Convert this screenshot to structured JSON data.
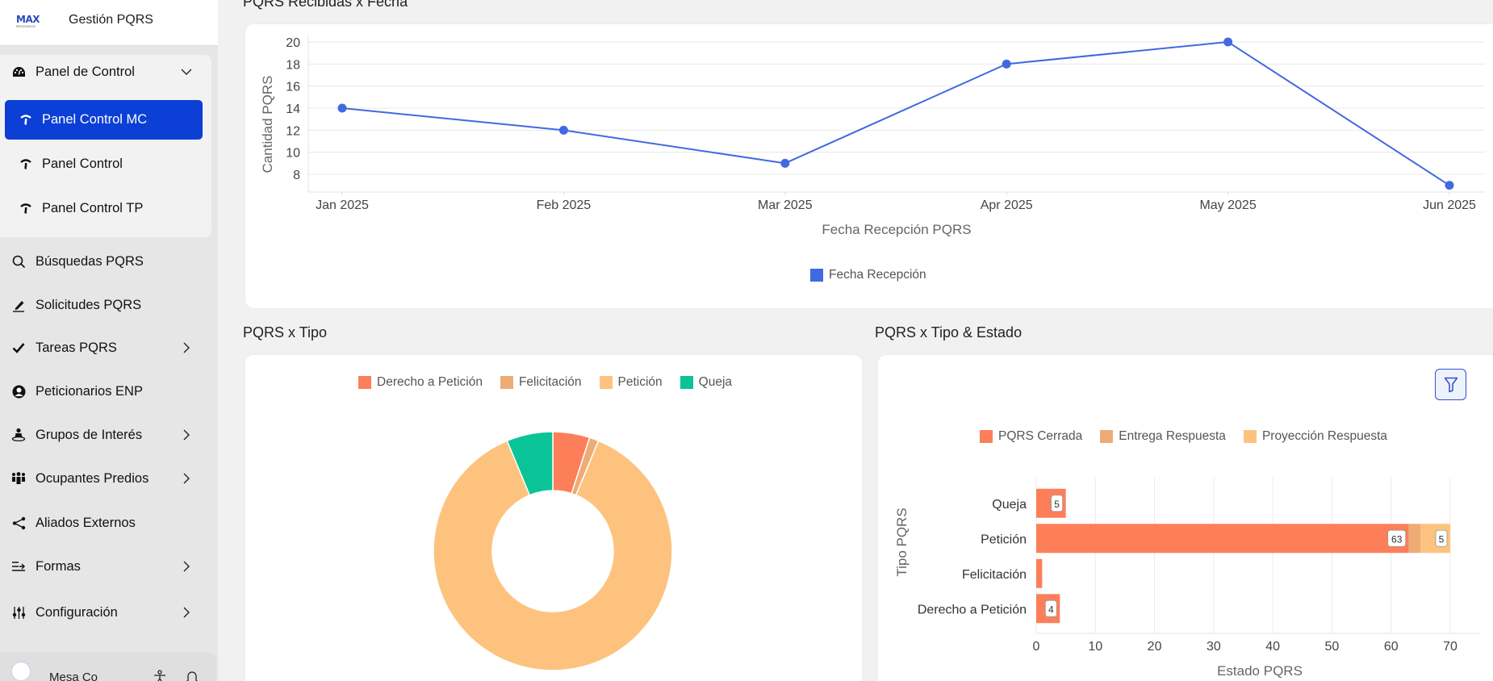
{
  "app": {
    "title": "Gestión PQRS",
    "logo_text": "MAX",
    "logo_subtext": "RESOURCE"
  },
  "sidebar": {
    "group": {
      "label": "Panel de Control",
      "icon": "gauge-icon",
      "expanded": true,
      "children": [
        {
          "label": "Panel Control MC",
          "icon": "dashboard-needle-icon",
          "active": true
        },
        {
          "label": "Panel Control",
          "icon": "dashboard-needle-icon",
          "active": false
        },
        {
          "label": "Panel Control TP",
          "icon": "dashboard-needle-icon",
          "active": false
        }
      ]
    },
    "items": [
      {
        "label": "Búsquedas PQRS",
        "icon": "search-icon",
        "has_children": false
      },
      {
        "label": "Solicitudes PQRS",
        "icon": "pen-icon",
        "has_children": false
      },
      {
        "label": "Tareas PQRS",
        "icon": "check-icon",
        "has_children": true
      },
      {
        "label": "Peticionarios ENP",
        "icon": "user-circle-icon",
        "has_children": false
      },
      {
        "label": "Grupos de Interés",
        "icon": "person-ring-icon",
        "has_children": true
      },
      {
        "label": "Ocupantes Predios",
        "icon": "people-group-icon",
        "has_children": true
      },
      {
        "label": "Aliados Externos",
        "icon": "share-nodes-icon",
        "has_children": false
      },
      {
        "label": "Formas",
        "icon": "form-arrow-icon",
        "has_children": true
      },
      {
        "label": "Configuración",
        "icon": "sliders-icon",
        "has_children": true
      }
    ],
    "user": {
      "name": "Mesa Co",
      "icons": [
        "accessibility-icon",
        "bell-icon"
      ]
    }
  },
  "sections": {
    "line_title": "PQRS Recibidas x Fecha",
    "donut_title": "PQRS x Tipo",
    "bar_title": "PQRS x Tipo & Estado"
  },
  "colors": {
    "accent": "#0b3fd6",
    "line": "#4169e1",
    "derecho": "#fc7f5a",
    "felicitacion": "#edab76",
    "peticion": "#fdc37e",
    "queja": "#0ac397"
  },
  "chart_data": [
    {
      "type": "line",
      "title": "PQRS Recibidas x Fecha",
      "xlabel": "Fecha Recepción PQRS",
      "ylabel": "Cantidad PQRS",
      "categories": [
        "Jan 2025",
        "Feb 2025",
        "Mar 2025",
        "Apr 2025",
        "May 2025",
        "Jun 2025"
      ],
      "series": [
        {
          "name": "Fecha Recepción",
          "values": [
            14,
            12,
            9,
            18,
            20,
            7
          ]
        }
      ],
      "yticks": [
        8,
        10,
        12,
        14,
        16,
        18,
        20
      ],
      "ylim": [
        6.5,
        20.5
      ],
      "grid": true,
      "legend": "bottom"
    },
    {
      "type": "pie",
      "title": "PQRS x Tipo",
      "donut": true,
      "labels": [
        "Derecho a Petición",
        "Felicitación",
        "Petición",
        "Queja"
      ],
      "values": [
        4,
        1,
        70,
        5
      ],
      "legend": "top"
    },
    {
      "type": "bar",
      "orientation": "horizontal",
      "stacked": true,
      "title": "PQRS x Tipo & Estado",
      "xlabel": "Estado PQRS",
      "ylabel": "Tipo PQRS",
      "categories": [
        "Queja",
        "Petición",
        "Felicitación",
        "Derecho a Petición"
      ],
      "series": [
        {
          "name": "PQRS Cerrada",
          "values": [
            5,
            63,
            1,
            4
          ]
        },
        {
          "name": "Entrega Respuesta",
          "values": [
            0,
            2,
            0,
            0
          ]
        },
        {
          "name": "Proyección Respuesta",
          "values": [
            0,
            5,
            0,
            0
          ]
        }
      ],
      "data_labels": [
        {
          "category": "Queja",
          "series": "PQRS Cerrada",
          "text": "5"
        },
        {
          "category": "Petición",
          "series": "PQRS Cerrada",
          "text": "63"
        },
        {
          "category": "Petición",
          "series": "Proyección Respuesta",
          "text": "5"
        },
        {
          "category": "Derecho a Petición",
          "series": "PQRS Cerrada",
          "text": "4"
        }
      ],
      "xticks": [
        0,
        10,
        20,
        30,
        40,
        50,
        60,
        70
      ],
      "xlim": [
        0,
        75
      ],
      "grid": true,
      "legend": "top"
    }
  ]
}
